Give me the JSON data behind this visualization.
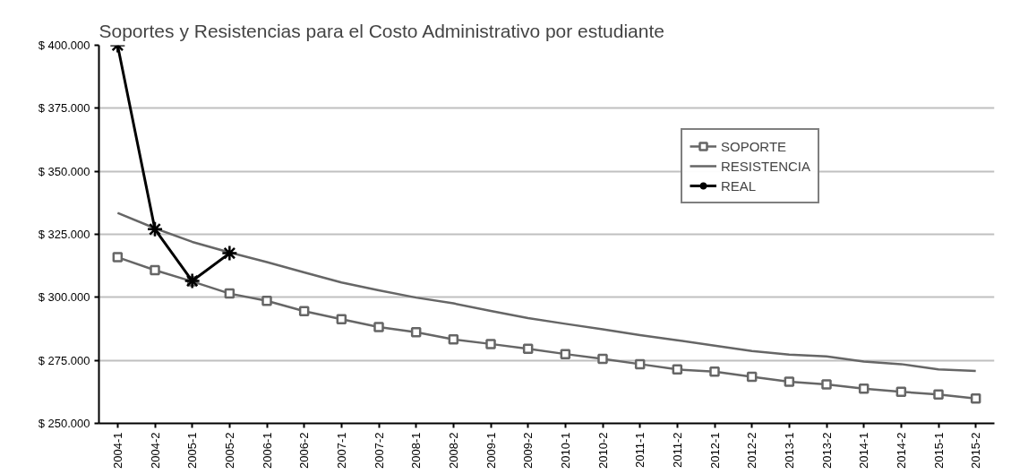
{
  "chart_data": {
    "type": "line",
    "title": "Soportes y Resistencias para el Costo Administrativo por estudiante",
    "categories": [
      "2004-1",
      "2004-2",
      "2005-1",
      "2005-2",
      "2006-1",
      "2006-2",
      "2007-1",
      "2007-2",
      "2008-1",
      "2008-2",
      "2009-1",
      "2009-2",
      "2010-1",
      "2010-2",
      "2011-1",
      "2011-2",
      "2012-1",
      "2012-2",
      "2013-1",
      "2013-2",
      "2014-1",
      "2014-2",
      "2015-1",
      "2015-2"
    ],
    "series": [
      {
        "name": "SOPORTE",
        "color": "#666666",
        "marker": "square",
        "values": [
          315.9,
          310.8,
          306.3,
          301.5,
          298.6,
          294.5,
          291.3,
          288.2,
          286.2,
          283.3,
          281.5,
          279.6,
          277.5,
          275.6,
          273.5,
          271.4,
          270.5,
          268.5,
          266.5,
          265.5,
          263.8,
          262.5,
          261.5,
          259.9
        ]
      },
      {
        "name": "RESISTENCIA",
        "color": "#666666",
        "marker": "none",
        "values": [
          333.5,
          327.4,
          322,
          317.8,
          314,
          309.9,
          305.9,
          302.8,
          299.9,
          297.6,
          294.6,
          291.8,
          289.5,
          287.3,
          285,
          283,
          280.8,
          278.7,
          277.3,
          276.6,
          274.5,
          273.5,
          271.4,
          270.8
        ]
      },
      {
        "name": "REAL",
        "color": "#000000",
        "marker": "cross",
        "values": [
          400,
          327,
          306.5,
          317.5,
          null,
          null,
          null,
          null,
          null,
          null,
          null,
          null,
          null,
          null,
          null,
          null,
          null,
          null,
          null,
          null,
          null,
          null,
          null,
          null
        ]
      }
    ],
    "ylim": [
      250,
      400
    ],
    "yticks": [
      {
        "value": 250,
        "label": "$ 250.000"
      },
      {
        "value": 275,
        "label": "$ 275.000"
      },
      {
        "value": 300,
        "label": "$ 300.000"
      },
      {
        "value": 325,
        "label": "$ 325.000"
      },
      {
        "value": 350,
        "label": "$ 350.000"
      },
      {
        "value": 375,
        "label": "$ 375.000"
      },
      {
        "value": 400,
        "label": "$ 400.000"
      }
    ],
    "grid": "y",
    "legend": "top right"
  }
}
